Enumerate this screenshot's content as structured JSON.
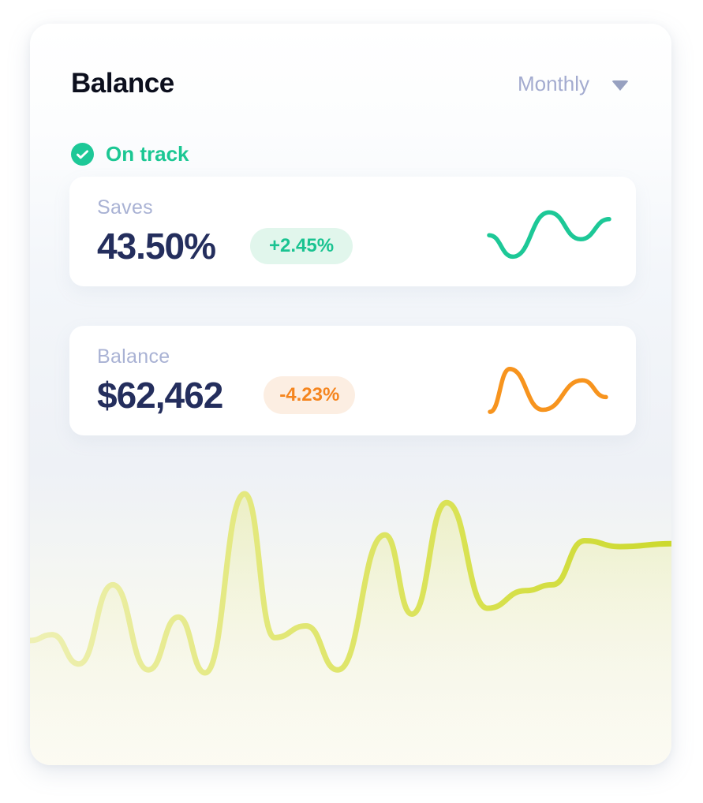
{
  "header": {
    "title": "Balance",
    "period": "Monthly",
    "status": "On track"
  },
  "cards": [
    {
      "label": "Saves",
      "value": "43.50%",
      "change": "+2.45%",
      "direction": "up"
    },
    {
      "label": "Balance",
      "value": "$62,462",
      "change": "-4.23%",
      "direction": "down"
    }
  ],
  "colors": {
    "title": "#0c0f1d",
    "muted_label": "#a9b2d4",
    "dropdown_text": "#a3abcf",
    "value_navy": "#242e5d",
    "green": "#1dc897",
    "green_badge_bg": "#e1f6ec",
    "orange": "#f7941e",
    "orange_badge_bg": "#fceee2",
    "area_line": "#d5df45",
    "area_fill": "#f7f8d8"
  },
  "chart_data": [
    {
      "name": "balance-trend",
      "type": "area",
      "title": "",
      "xlabel": "",
      "ylabel": "",
      "axes_visible": false,
      "grid": false,
      "legend": false,
      "x_range": [
        0,
        813
      ],
      "ylim": [
        0,
        100
      ],
      "points": [
        [
          0,
          43
        ],
        [
          28,
          45
        ],
        [
          62,
          35
        ],
        [
          105,
          62
        ],
        [
          150,
          33
        ],
        [
          188,
          51
        ],
        [
          222,
          32
        ],
        [
          272,
          93
        ],
        [
          310,
          44
        ],
        [
          350,
          48
        ],
        [
          390,
          33
        ],
        [
          450,
          79
        ],
        [
          484,
          52
        ],
        [
          528,
          90
        ],
        [
          580,
          54
        ],
        [
          628,
          60
        ],
        [
          662,
          62
        ],
        [
          703,
          77
        ],
        [
          748,
          75
        ],
        [
          813,
          76
        ]
      ]
    },
    {
      "name": "saves-sparkline",
      "type": "line",
      "axes_visible": false,
      "x_range": [
        0,
        160
      ],
      "ylim": [
        0,
        100
      ],
      "points": [
        [
          4,
          48
        ],
        [
          34,
          16
        ],
        [
          80,
          82
        ],
        [
          120,
          42
        ],
        [
          156,
          72
        ]
      ]
    },
    {
      "name": "balance-sparkline",
      "type": "line",
      "axes_visible": false,
      "x_range": [
        0,
        160
      ],
      "ylim": [
        0,
        100
      ],
      "points": [
        [
          5,
          14
        ],
        [
          30,
          78
        ],
        [
          72,
          17
        ],
        [
          122,
          61
        ],
        [
          152,
          36
        ]
      ]
    }
  ]
}
